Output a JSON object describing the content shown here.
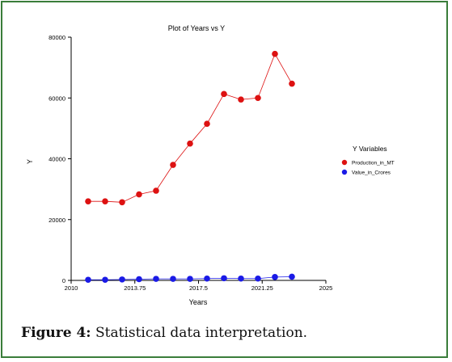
{
  "caption": {
    "label": "Figure 4:",
    "text": "Statistical data interpretation."
  },
  "colors": {
    "production": "#dd1111",
    "value": "#1a1ae6",
    "frame": "#3a7d3a"
  },
  "chart_data": {
    "type": "line",
    "title": "Plot of Years vs Y",
    "xlabel": "Years",
    "ylabel": "Y",
    "xlim": [
      2010,
      2025
    ],
    "ylim": [
      0,
      80000
    ],
    "x_ticks": [
      "2010",
      "2013.75",
      "2017.5",
      "2021.25",
      "2025"
    ],
    "y_ticks": [
      "0",
      "20000",
      "40000",
      "60000",
      "80000"
    ],
    "legend_title": "Y Variables",
    "legend_position": "right",
    "grid": false,
    "x": [
      2011,
      2012,
      2013,
      2014,
      2015,
      2016,
      2017,
      2018,
      2019,
      2020,
      2021,
      2022,
      2023
    ],
    "series": [
      {
        "name": "Production_in_MT",
        "color": "#dd1111",
        "values": [
          26000,
          26000,
          25700,
          28300,
          29500,
          38000,
          45000,
          51500,
          61300,
          59500,
          60000,
          74500,
          64700
        ]
      },
      {
        "name": "Value_in_Crores",
        "color": "#1a1ae6",
        "values": [
          200,
          200,
          300,
          400,
          500,
          500,
          500,
          600,
          700,
          600,
          600,
          1100,
          1200
        ]
      }
    ]
  }
}
